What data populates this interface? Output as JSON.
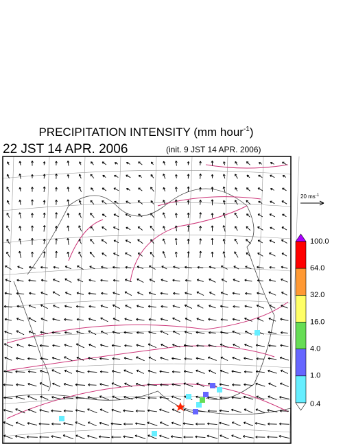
{
  "header": {
    "title": "PRECIPITATION INTENSITY (mm hour",
    "title_sup": "-1",
    "title_end": ")",
    "valid_time": "22 JST 14 APR. 2006",
    "init_time": "(init. 9 JST 14 APR. 2006)"
  },
  "reference_vector": {
    "label": "20 ms",
    "label_sup": "-1"
  },
  "colorbar": {
    "labels": [
      "100.0",
      "64.0",
      "32.0",
      "16.0",
      "4.0",
      "1.0",
      "0.4"
    ],
    "colors": [
      "#ff0000",
      "#ff9933",
      "#ffff66",
      "#66dd55",
      "#6666ff",
      "#66eeff"
    ],
    "over_color": "#aa00ff",
    "under_color": "#ffffff"
  }
}
